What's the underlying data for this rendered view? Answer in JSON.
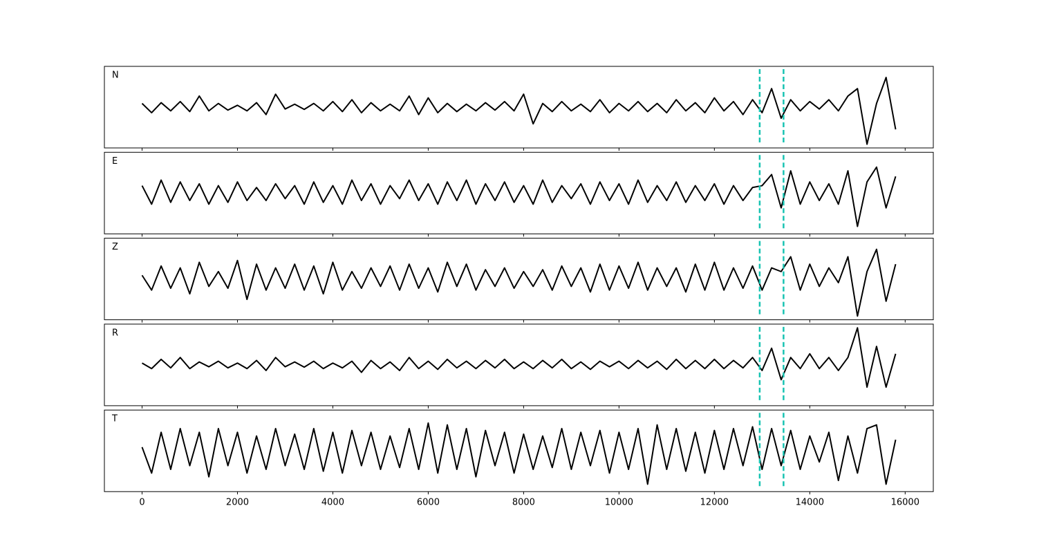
{
  "chart_data": {
    "type": "line",
    "x": [
      0,
      200,
      400,
      600,
      800,
      1000,
      1200,
      1400,
      1600,
      1800,
      2000,
      2200,
      2400,
      2600,
      2800,
      3000,
      3200,
      3400,
      3600,
      3800,
      4000,
      4200,
      4400,
      4600,
      4800,
      5000,
      5200,
      5400,
      5600,
      5800,
      6000,
      6200,
      6400,
      6600,
      6800,
      7000,
      7200,
      7400,
      7600,
      7800,
      8000,
      8200,
      8400,
      8600,
      8800,
      9000,
      9200,
      9400,
      9600,
      9800,
      10000,
      10200,
      10400,
      10600,
      10800,
      11000,
      11200,
      11400,
      11600,
      11800,
      12000,
      12200,
      12400,
      12600,
      12800,
      13000,
      13200,
      13400,
      13600,
      13800,
      14000,
      14200,
      14400,
      14600,
      14800,
      15000,
      15200,
      15400,
      15600,
      15800
    ],
    "xlim": [
      -790,
      16590
    ],
    "xticks": [
      0,
      2000,
      4000,
      6000,
      8000,
      10000,
      12000,
      14000,
      16000
    ],
    "ylim": [
      -1.1,
      1.1
    ],
    "line_color": "#000000",
    "vlines": [
      12950,
      13450
    ],
    "vline_color": "#17c3b2",
    "series": [
      {
        "name": "N",
        "values": [
          0.1,
          -0.15,
          0.12,
          -0.1,
          0.15,
          -0.12,
          0.3,
          -0.1,
          0.1,
          -0.08,
          0.05,
          -0.1,
          0.12,
          -0.2,
          0.35,
          -0.05,
          0.08,
          -0.06,
          0.1,
          -0.1,
          0.15,
          -0.12,
          0.2,
          -0.15,
          0.12,
          -0.1,
          0.08,
          -0.1,
          0.3,
          -0.2,
          0.25,
          -0.15,
          0.1,
          -0.12,
          0.08,
          -0.1,
          0.12,
          -0.08,
          0.15,
          -0.1,
          0.35,
          -0.45,
          0.1,
          -0.12,
          0.15,
          -0.1,
          0.08,
          -0.12,
          0.2,
          -0.15,
          0.1,
          -0.1,
          0.15,
          -0.12,
          0.1,
          -0.15,
          0.2,
          -0.1,
          0.12,
          -0.15,
          0.25,
          -0.1,
          0.15,
          -0.2,
          0.2,
          -0.15,
          0.5,
          -0.3,
          0.2,
          -0.1,
          0.15,
          -0.05,
          0.2,
          -0.1,
          0.3,
          0.5,
          -1.0,
          0.1,
          0.8,
          -0.6
        ]
      },
      {
        "name": "E",
        "values": [
          0.2,
          -0.3,
          0.35,
          -0.25,
          0.3,
          -0.2,
          0.25,
          -0.3,
          0.2,
          -0.25,
          0.3,
          -0.2,
          0.15,
          -0.2,
          0.25,
          -0.15,
          0.2,
          -0.3,
          0.3,
          -0.25,
          0.2,
          -0.3,
          0.35,
          -0.2,
          0.25,
          -0.3,
          0.2,
          -0.15,
          0.35,
          -0.2,
          0.25,
          -0.3,
          0.3,
          -0.2,
          0.35,
          -0.3,
          0.25,
          -0.2,
          0.3,
          -0.25,
          0.2,
          -0.3,
          0.35,
          -0.25,
          0.2,
          -0.15,
          0.25,
          -0.3,
          0.3,
          -0.2,
          0.25,
          -0.3,
          0.35,
          -0.25,
          0.2,
          -0.2,
          0.3,
          -0.25,
          0.2,
          -0.2,
          0.25,
          -0.3,
          0.2,
          -0.2,
          0.15,
          0.2,
          0.5,
          -0.4,
          0.6,
          -0.3,
          0.3,
          -0.2,
          0.25,
          -0.3,
          0.6,
          -0.9,
          0.3,
          0.7,
          -0.4,
          0.45
        ]
      },
      {
        "name": "Z",
        "values": [
          0.1,
          -0.3,
          0.35,
          -0.25,
          0.3,
          -0.4,
          0.45,
          -0.2,
          0.2,
          -0.25,
          0.5,
          -0.55,
          0.4,
          -0.3,
          0.3,
          -0.25,
          0.4,
          -0.3,
          0.35,
          -0.4,
          0.45,
          -0.3,
          0.2,
          -0.25,
          0.3,
          -0.2,
          0.35,
          -0.3,
          0.4,
          -0.25,
          0.3,
          -0.35,
          0.45,
          -0.2,
          0.4,
          -0.3,
          0.25,
          -0.2,
          0.3,
          -0.25,
          0.2,
          -0.2,
          0.25,
          -0.3,
          0.35,
          -0.2,
          0.3,
          -0.35,
          0.4,
          -0.3,
          0.35,
          -0.25,
          0.45,
          -0.3,
          0.3,
          -0.2,
          0.3,
          -0.35,
          0.4,
          -0.3,
          0.45,
          -0.3,
          0.3,
          -0.25,
          0.35,
          -0.3,
          0.3,
          0.2,
          0.6,
          -0.3,
          0.4,
          -0.2,
          0.3,
          -0.1,
          0.6,
          -1.0,
          0.2,
          0.8,
          -0.6,
          0.4
        ]
      },
      {
        "name": "R",
        "values": [
          0.05,
          -0.1,
          0.15,
          -0.08,
          0.2,
          -0.1,
          0.08,
          -0.05,
          0.1,
          -0.08,
          0.05,
          -0.1,
          0.12,
          -0.15,
          0.2,
          -0.05,
          0.08,
          -0.06,
          0.1,
          -0.1,
          0.05,
          -0.08,
          0.1,
          -0.2,
          0.12,
          -0.1,
          0.08,
          -0.15,
          0.2,
          -0.1,
          0.1,
          -0.12,
          0.15,
          -0.08,
          0.1,
          -0.1,
          0.12,
          -0.08,
          0.15,
          -0.1,
          0.08,
          -0.1,
          0.12,
          -0.08,
          0.15,
          -0.1,
          0.08,
          -0.12,
          0.1,
          -0.05,
          0.1,
          -0.1,
          0.12,
          -0.08,
          0.1,
          -0.12,
          0.15,
          -0.1,
          0.12,
          -0.1,
          0.15,
          -0.1,
          0.12,
          -0.08,
          0.2,
          -0.15,
          0.45,
          -0.4,
          0.2,
          -0.1,
          0.3,
          -0.1,
          0.2,
          -0.15,
          0.2,
          1.0,
          -0.6,
          0.5,
          -0.6,
          0.3
        ]
      },
      {
        "name": "T",
        "values": [
          0.1,
          -0.6,
          0.5,
          -0.5,
          0.6,
          -0.4,
          0.5,
          -0.7,
          0.6,
          -0.4,
          0.5,
          -0.6,
          0.4,
          -0.5,
          0.6,
          -0.4,
          0.45,
          -0.5,
          0.6,
          -0.55,
          0.5,
          -0.6,
          0.55,
          -0.4,
          0.5,
          -0.5,
          0.4,
          -0.45,
          0.6,
          -0.5,
          0.75,
          -0.6,
          0.7,
          -0.5,
          0.6,
          -0.7,
          0.55,
          -0.4,
          0.5,
          -0.6,
          0.45,
          -0.5,
          0.4,
          -0.45,
          0.6,
          -0.5,
          0.5,
          -0.4,
          0.55,
          -0.6,
          0.5,
          -0.5,
          0.6,
          -0.9,
          0.7,
          -0.5,
          0.6,
          -0.55,
          0.5,
          -0.6,
          0.55,
          -0.5,
          0.6,
          -0.4,
          0.65,
          -0.5,
          0.6,
          -0.4,
          0.55,
          -0.5,
          0.4,
          -0.3,
          0.5,
          -0.8,
          0.4,
          -0.6,
          0.6,
          0.7,
          -0.9,
          0.3
        ]
      }
    ]
  }
}
